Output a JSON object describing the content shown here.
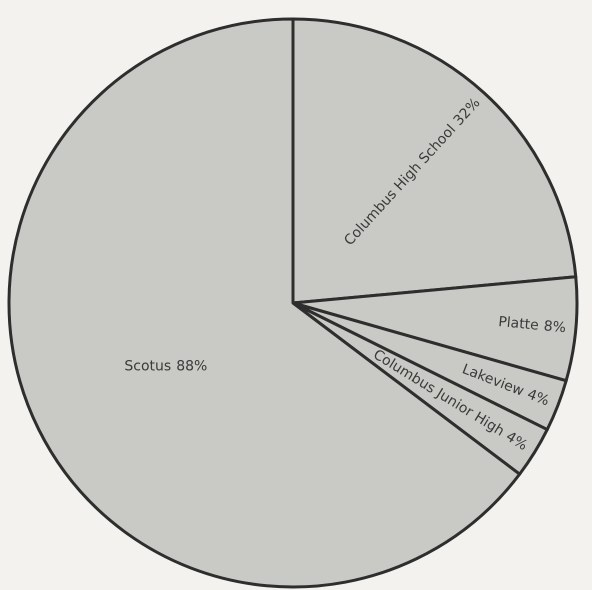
{
  "chart_data": {
    "type": "pie",
    "categories": [
      "Columbus High School",
      "Platte",
      "Lakeview",
      "Columbus Junior High",
      "Scotus"
    ],
    "values": [
      32,
      8,
      4,
      4,
      88
    ],
    "value_labels": [
      "32%",
      "8%",
      "4%",
      "4%",
      "88%"
    ],
    "color": "#c9cac5"
  }
}
